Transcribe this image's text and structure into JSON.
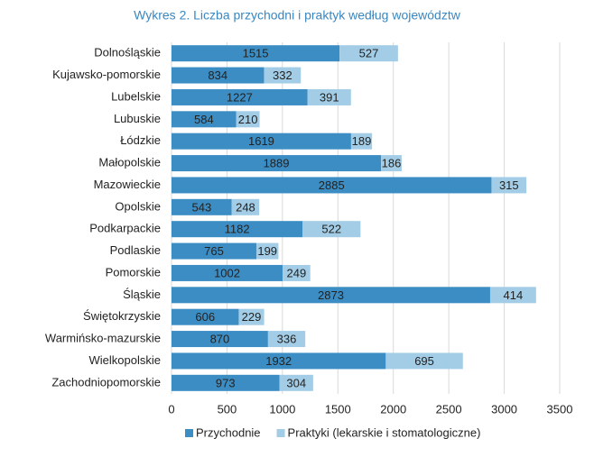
{
  "chart_data": {
    "type": "stacked-bar-horizontal",
    "title": "Wykres 2. Liczba przychodni i praktyk według województw",
    "categories": [
      "Dolnośląskie",
      "Kujawsko-pomorskie",
      "Lubelskie",
      "Lubuskie",
      "Łódzkie",
      "Małopolskie",
      "Mazowieckie",
      "Opolskie",
      "Podkarpackie",
      "Podlaskie",
      "Pomorskie",
      "Śląskie",
      "Świętokrzyskie",
      "Warmińsko-mazurskie",
      "Wielkopolskie",
      "Zachodniopomorskie"
    ],
    "series": [
      {
        "name": "Przychodnie",
        "color": "#3c8dc4",
        "values": [
          1515,
          834,
          1227,
          584,
          1619,
          1889,
          2885,
          543,
          1182,
          765,
          1002,
          2873,
          606,
          870,
          1932,
          973
        ]
      },
      {
        "name": "Praktyki (lekarskie i stomatologiczne)",
        "color": "#a3cde6",
        "values": [
          527,
          332,
          391,
          210,
          189,
          186,
          315,
          248,
          522,
          199,
          249,
          414,
          229,
          336,
          695,
          304
        ]
      }
    ],
    "xlim": [
      0,
      3500
    ],
    "xticks": [
      0,
      500,
      1000,
      1500,
      2000,
      2500,
      3000,
      3500
    ],
    "grid": true,
    "legend": "bottom"
  }
}
